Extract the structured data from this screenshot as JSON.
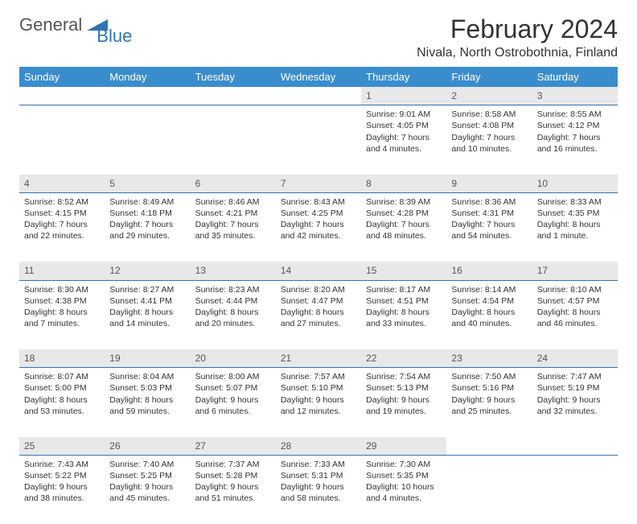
{
  "logo": {
    "text1": "General",
    "text2": "Blue"
  },
  "title": "February 2024",
  "location": "Nivala, North Ostrobothnia, Finland",
  "colors": {
    "header_bg": "#3a8dcc",
    "header_text": "#ffffff",
    "daynum_bg": "#e8e8e8",
    "border": "#2e75b6",
    "logo_blue": "#2e75b6",
    "text": "#333333"
  },
  "weekdays": [
    "Sunday",
    "Monday",
    "Tuesday",
    "Wednesday",
    "Thursday",
    "Friday",
    "Saturday"
  ],
  "weeks": [
    {
      "nums": [
        "",
        "",
        "",
        "",
        "1",
        "2",
        "3"
      ],
      "cells": [
        null,
        null,
        null,
        null,
        {
          "sunrise": "Sunrise: 9:01 AM",
          "sunset": "Sunset: 4:05 PM",
          "day1": "Daylight: 7 hours",
          "day2": "and 4 minutes."
        },
        {
          "sunrise": "Sunrise: 8:58 AM",
          "sunset": "Sunset: 4:08 PM",
          "day1": "Daylight: 7 hours",
          "day2": "and 10 minutes."
        },
        {
          "sunrise": "Sunrise: 8:55 AM",
          "sunset": "Sunset: 4:12 PM",
          "day1": "Daylight: 7 hours",
          "day2": "and 16 minutes."
        }
      ]
    },
    {
      "nums": [
        "4",
        "5",
        "6",
        "7",
        "8",
        "9",
        "10"
      ],
      "cells": [
        {
          "sunrise": "Sunrise: 8:52 AM",
          "sunset": "Sunset: 4:15 PM",
          "day1": "Daylight: 7 hours",
          "day2": "and 22 minutes."
        },
        {
          "sunrise": "Sunrise: 8:49 AM",
          "sunset": "Sunset: 4:18 PM",
          "day1": "Daylight: 7 hours",
          "day2": "and 29 minutes."
        },
        {
          "sunrise": "Sunrise: 8:46 AM",
          "sunset": "Sunset: 4:21 PM",
          "day1": "Daylight: 7 hours",
          "day2": "and 35 minutes."
        },
        {
          "sunrise": "Sunrise: 8:43 AM",
          "sunset": "Sunset: 4:25 PM",
          "day1": "Daylight: 7 hours",
          "day2": "and 42 minutes."
        },
        {
          "sunrise": "Sunrise: 8:39 AM",
          "sunset": "Sunset: 4:28 PM",
          "day1": "Daylight: 7 hours",
          "day2": "and 48 minutes."
        },
        {
          "sunrise": "Sunrise: 8:36 AM",
          "sunset": "Sunset: 4:31 PM",
          "day1": "Daylight: 7 hours",
          "day2": "and 54 minutes."
        },
        {
          "sunrise": "Sunrise: 8:33 AM",
          "sunset": "Sunset: 4:35 PM",
          "day1": "Daylight: 8 hours",
          "day2": "and 1 minute."
        }
      ]
    },
    {
      "nums": [
        "11",
        "12",
        "13",
        "14",
        "15",
        "16",
        "17"
      ],
      "cells": [
        {
          "sunrise": "Sunrise: 8:30 AM",
          "sunset": "Sunset: 4:38 PM",
          "day1": "Daylight: 8 hours",
          "day2": "and 7 minutes."
        },
        {
          "sunrise": "Sunrise: 8:27 AM",
          "sunset": "Sunset: 4:41 PM",
          "day1": "Daylight: 8 hours",
          "day2": "and 14 minutes."
        },
        {
          "sunrise": "Sunrise: 8:23 AM",
          "sunset": "Sunset: 4:44 PM",
          "day1": "Daylight: 8 hours",
          "day2": "and 20 minutes."
        },
        {
          "sunrise": "Sunrise: 8:20 AM",
          "sunset": "Sunset: 4:47 PM",
          "day1": "Daylight: 8 hours",
          "day2": "and 27 minutes."
        },
        {
          "sunrise": "Sunrise: 8:17 AM",
          "sunset": "Sunset: 4:51 PM",
          "day1": "Daylight: 8 hours",
          "day2": "and 33 minutes."
        },
        {
          "sunrise": "Sunrise: 8:14 AM",
          "sunset": "Sunset: 4:54 PM",
          "day1": "Daylight: 8 hours",
          "day2": "and 40 minutes."
        },
        {
          "sunrise": "Sunrise: 8:10 AM",
          "sunset": "Sunset: 4:57 PM",
          "day1": "Daylight: 8 hours",
          "day2": "and 46 minutes."
        }
      ]
    },
    {
      "nums": [
        "18",
        "19",
        "20",
        "21",
        "22",
        "23",
        "24"
      ],
      "cells": [
        {
          "sunrise": "Sunrise: 8:07 AM",
          "sunset": "Sunset: 5:00 PM",
          "day1": "Daylight: 8 hours",
          "day2": "and 53 minutes."
        },
        {
          "sunrise": "Sunrise: 8:04 AM",
          "sunset": "Sunset: 5:03 PM",
          "day1": "Daylight: 8 hours",
          "day2": "and 59 minutes."
        },
        {
          "sunrise": "Sunrise: 8:00 AM",
          "sunset": "Sunset: 5:07 PM",
          "day1": "Daylight: 9 hours",
          "day2": "and 6 minutes."
        },
        {
          "sunrise": "Sunrise: 7:57 AM",
          "sunset": "Sunset: 5:10 PM",
          "day1": "Daylight: 9 hours",
          "day2": "and 12 minutes."
        },
        {
          "sunrise": "Sunrise: 7:54 AM",
          "sunset": "Sunset: 5:13 PM",
          "day1": "Daylight: 9 hours",
          "day2": "and 19 minutes."
        },
        {
          "sunrise": "Sunrise: 7:50 AM",
          "sunset": "Sunset: 5:16 PM",
          "day1": "Daylight: 9 hours",
          "day2": "and 25 minutes."
        },
        {
          "sunrise": "Sunrise: 7:47 AM",
          "sunset": "Sunset: 5:19 PM",
          "day1": "Daylight: 9 hours",
          "day2": "and 32 minutes."
        }
      ]
    },
    {
      "nums": [
        "25",
        "26",
        "27",
        "28",
        "29",
        "",
        ""
      ],
      "cells": [
        {
          "sunrise": "Sunrise: 7:43 AM",
          "sunset": "Sunset: 5:22 PM",
          "day1": "Daylight: 9 hours",
          "day2": "and 38 minutes."
        },
        {
          "sunrise": "Sunrise: 7:40 AM",
          "sunset": "Sunset: 5:25 PM",
          "day1": "Daylight: 9 hours",
          "day2": "and 45 minutes."
        },
        {
          "sunrise": "Sunrise: 7:37 AM",
          "sunset": "Sunset: 5:28 PM",
          "day1": "Daylight: 9 hours",
          "day2": "and 51 minutes."
        },
        {
          "sunrise": "Sunrise: 7:33 AM",
          "sunset": "Sunset: 5:31 PM",
          "day1": "Daylight: 9 hours",
          "day2": "and 58 minutes."
        },
        {
          "sunrise": "Sunrise: 7:30 AM",
          "sunset": "Sunset: 5:35 PM",
          "day1": "Daylight: 10 hours",
          "day2": "and 4 minutes."
        },
        null,
        null
      ]
    }
  ]
}
